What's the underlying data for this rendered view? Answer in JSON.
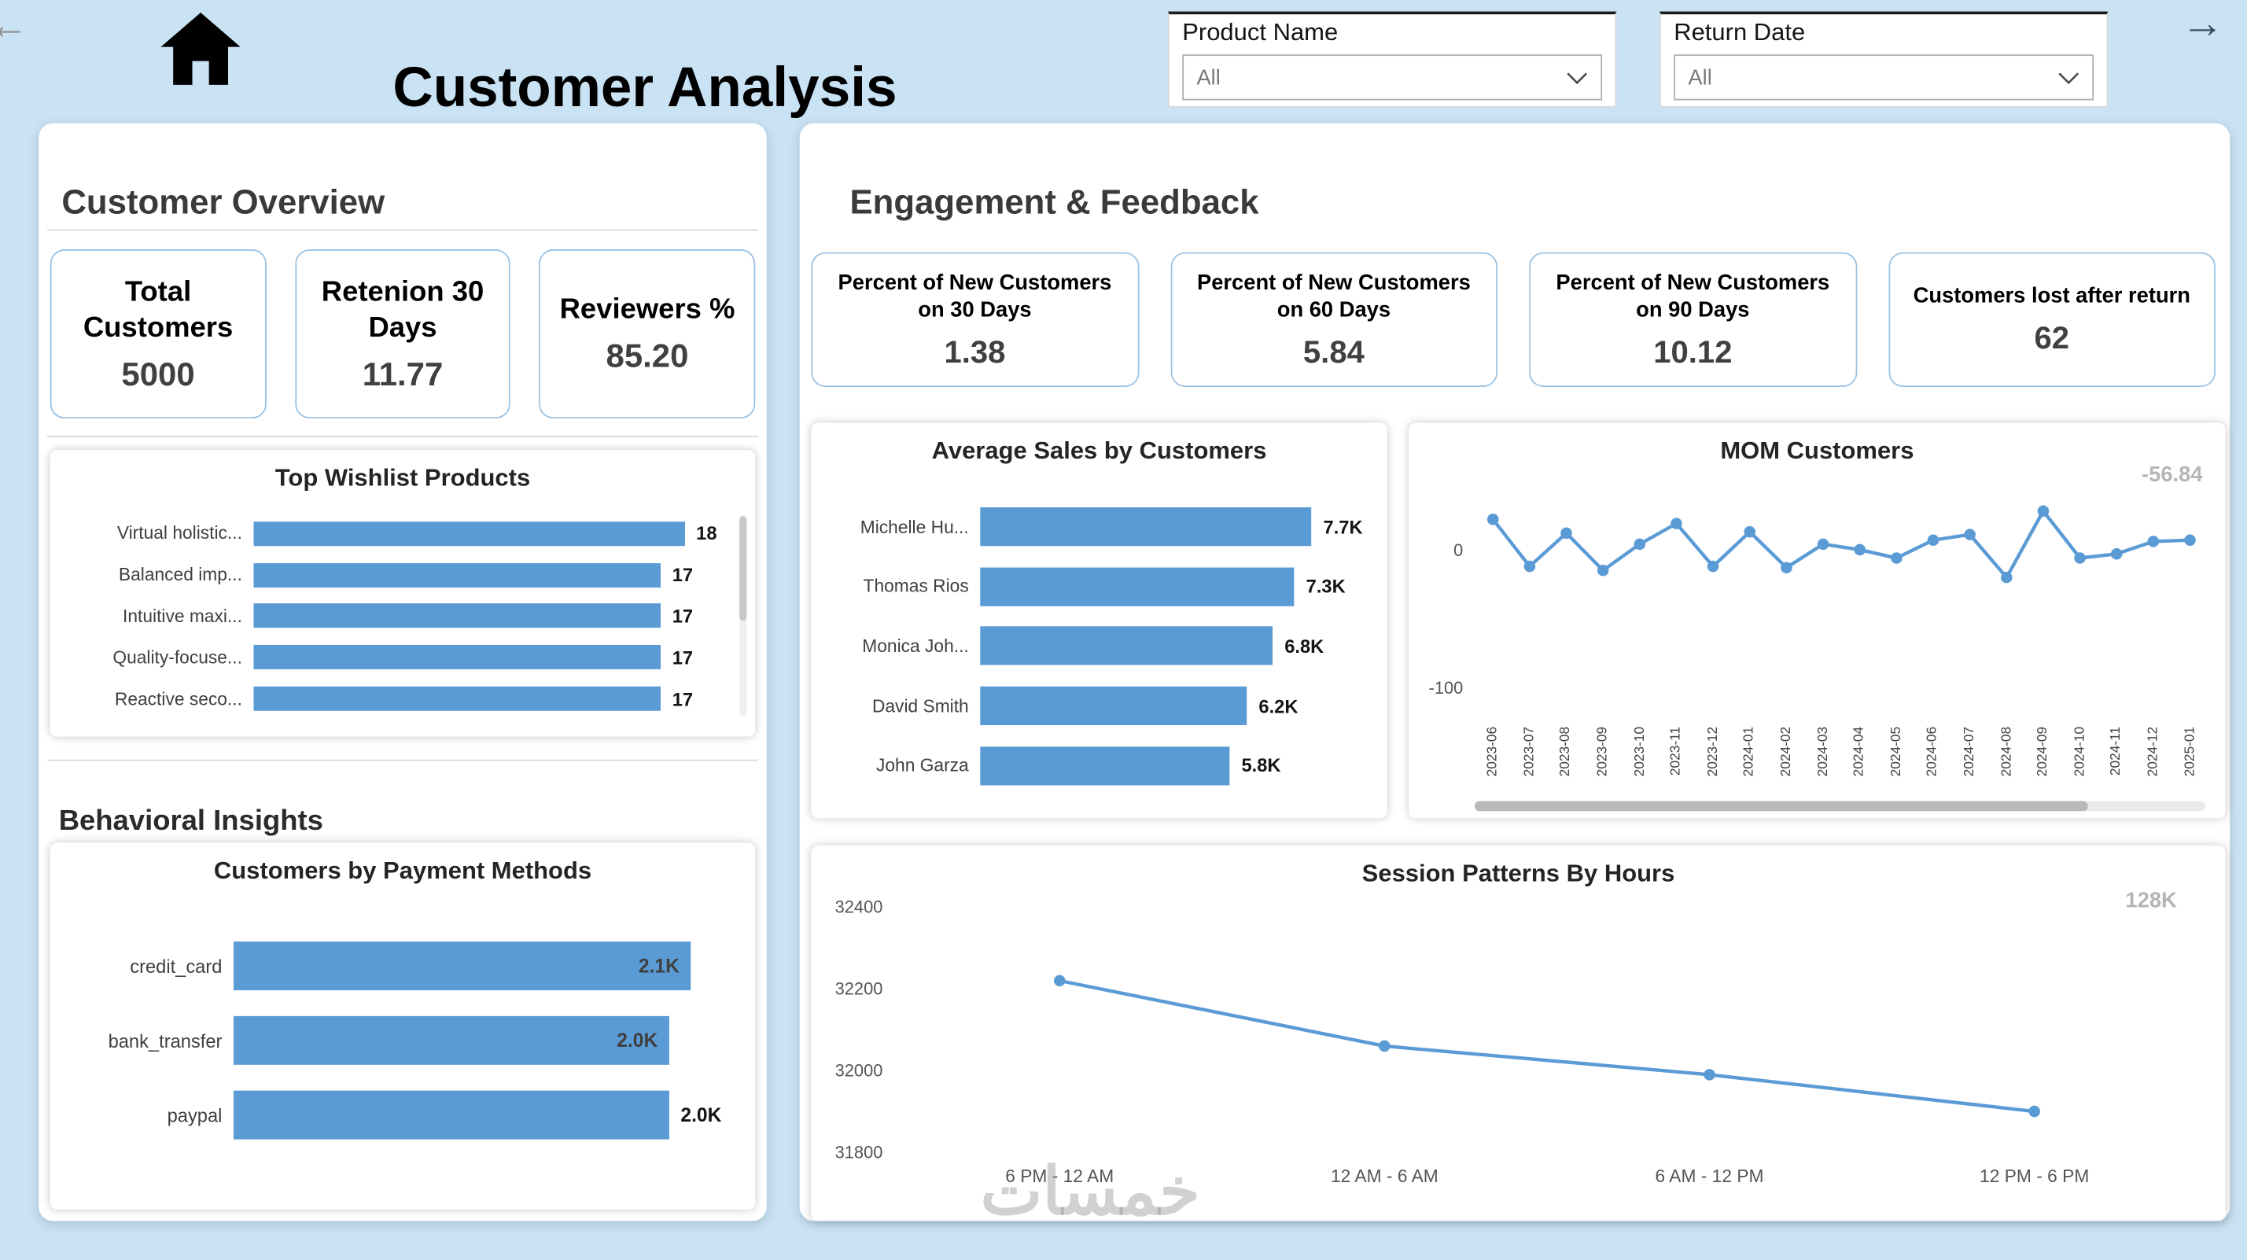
{
  "page": {
    "watermark": "خمسات"
  },
  "colors": {
    "accent": "#5b9bd5",
    "background": "#c9e2f4",
    "kpi_border": "#9cc3e3",
    "annotation_gray": "#b5b5b5"
  },
  "topbar": {
    "title": "Customer Analysis",
    "back_icon": "←",
    "forward_icon": "→",
    "filters": [
      {
        "label": "Product Name",
        "value": "All"
      },
      {
        "label": "Return Date",
        "value": "All"
      }
    ]
  },
  "left_panel": {
    "title": "Customer Overview",
    "behavioral_title": "Behavioral Insights",
    "kpis": [
      {
        "label": "Total Customers",
        "value": "5000"
      },
      {
        "label": "Retenion 30 Days",
        "value": "11.77"
      },
      {
        "label": "Reviewers %",
        "value": "85.20"
      }
    ]
  },
  "right_panel": {
    "title": "Engagement & Feedback",
    "kpis": [
      {
        "label": "Percent of New Customers on 30 Days",
        "value": "1.38"
      },
      {
        "label": "Percent of New Customers on 60 Days",
        "value": "5.84"
      },
      {
        "label": "Percent of New Customers on 90 Days",
        "value": "10.12"
      },
      {
        "label": "Customers lost after return",
        "value": "62"
      }
    ]
  },
  "chart_data": [
    {
      "id": "wishlist",
      "type": "bar",
      "orientation": "horizontal",
      "title": "Top Wishlist Products",
      "categories": [
        "Virtual holistic...",
        "Balanced imp...",
        "Intuitive maxi...",
        "Quality-focuse...",
        "Reactive seco..."
      ],
      "values": [
        18,
        17,
        17,
        17,
        17
      ],
      "value_labels": [
        "18",
        "17",
        "17",
        "17",
        "17"
      ],
      "label_positions": [
        "outside",
        "outside",
        "outside",
        "outside",
        "outside"
      ],
      "xlim": [
        0,
        19
      ]
    },
    {
      "id": "payment_methods",
      "type": "bar",
      "orientation": "horizontal",
      "title": "Customers by Payment Methods",
      "categories": [
        "credit_card",
        "bank_transfer",
        "paypal"
      ],
      "values": [
        2100,
        2000,
        2000
      ],
      "value_labels": [
        "2.1K",
        "2.0K",
        "2.0K"
      ],
      "label_positions": [
        "inside",
        "inside",
        "outside"
      ]
    },
    {
      "id": "avg_sales",
      "type": "bar",
      "orientation": "horizontal",
      "title": "Average Sales by Customers",
      "categories": [
        "Michelle Hu...",
        "Thomas Rios",
        "Monica Joh...",
        "David Smith",
        "John Garza"
      ],
      "values": [
        7700,
        7300,
        6800,
        6200,
        5800
      ],
      "value_labels": [
        "7.7K",
        "7.3K",
        "6.8K",
        "6.2K",
        "5.8K"
      ],
      "label_positions": [
        "outside",
        "outside",
        "outside",
        "outside",
        "outside"
      ]
    },
    {
      "id": "mom_customers",
      "type": "line",
      "title": "MOM Customers",
      "annotation": "-56.84",
      "x": [
        "2023-06",
        "2023-07",
        "2023-08",
        "2023-09",
        "2023-10",
        "2023-11",
        "2023-12",
        "2024-01",
        "2024-02",
        "2024-03",
        "2024-04",
        "2024-05",
        "2024-06",
        "2024-07",
        "2024-08",
        "2024-09",
        "2024-10",
        "2024-11",
        "2024-12",
        "2025-01"
      ],
      "values": [
        22,
        -12,
        12,
        -15,
        4,
        19,
        -12,
        13,
        -13,
        4,
        0,
        -6,
        7,
        11,
        -20,
        28,
        -6,
        -3,
        6,
        7
      ],
      "yticks": [
        0,
        -100
      ],
      "ylim": [
        -125,
        38
      ],
      "legend": "none",
      "grid": false
    },
    {
      "id": "session_patterns",
      "type": "line",
      "title": "Session Patterns By Hours",
      "annotation": "128K",
      "x": [
        "6 PM - 12 AM",
        "12 AM - 6 AM",
        "6 AM - 12 PM",
        "12 PM - 6 PM"
      ],
      "values": [
        32220,
        32060,
        31990,
        31900
      ],
      "yticks": [
        32400,
        32200,
        32000,
        31800
      ],
      "ylim": [
        31800,
        32400
      ],
      "legend": "none",
      "grid": false
    }
  ]
}
